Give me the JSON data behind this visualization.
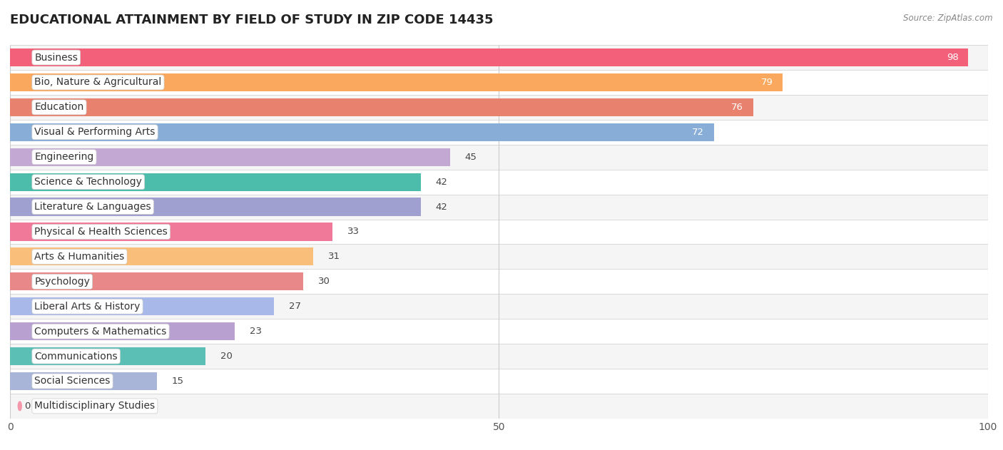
{
  "title": "EDUCATIONAL ATTAINMENT BY FIELD OF STUDY IN ZIP CODE 14435",
  "source": "Source: ZipAtlas.com",
  "categories": [
    "Business",
    "Bio, Nature & Agricultural",
    "Education",
    "Visual & Performing Arts",
    "Engineering",
    "Science & Technology",
    "Literature & Languages",
    "Physical & Health Sciences",
    "Arts & Humanities",
    "Psychology",
    "Liberal Arts & History",
    "Computers & Mathematics",
    "Communications",
    "Social Sciences",
    "Multidisciplinary Studies"
  ],
  "values": [
    98,
    79,
    76,
    72,
    45,
    42,
    42,
    33,
    31,
    30,
    27,
    23,
    20,
    15,
    0
  ],
  "colors": [
    "#F2607A",
    "#F9A85D",
    "#E8826E",
    "#88AED8",
    "#C4A8D4",
    "#4DBDAB",
    "#A0A0D0",
    "#F07898",
    "#F9BE7A",
    "#E88888",
    "#A8B8E8",
    "#B8A0D0",
    "#5BBFB5",
    "#A8B4D8",
    "#F497AA"
  ],
  "xlim": [
    0,
    100
  ],
  "bar_height": 0.72,
  "background_color": "#ffffff",
  "row_bg_odd": "#f5f5f5",
  "row_bg_even": "#ffffff",
  "title_fontsize": 13,
  "label_fontsize": 10,
  "value_fontsize": 9.5,
  "tick_fontsize": 10
}
